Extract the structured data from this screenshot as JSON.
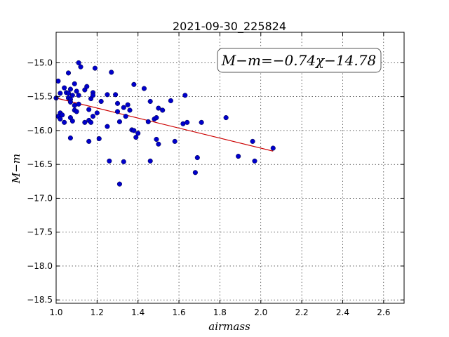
{
  "chart_data": {
    "type": "scatter",
    "title": "2021-09-30_225824",
    "xlabel": "airmass",
    "ylabel": "M−m",
    "xlim": [
      1.0,
      2.7
    ],
    "ylim": [
      -18.55,
      -14.55
    ],
    "y_inverted": true,
    "xticks": [
      "1.0",
      "1.2",
      "1.4",
      "1.6",
      "1.8",
      "2.0",
      "2.2",
      "2.4",
      "2.6"
    ],
    "xtick_values": [
      1.0,
      1.2,
      1.4,
      1.6,
      1.8,
      2.0,
      2.2,
      2.4,
      2.6
    ],
    "yticks": [
      "−15.0",
      "−15.5",
      "−16.0",
      "−16.5",
      "−17.0",
      "−17.5",
      "−18.0",
      "−18.5"
    ],
    "ytick_values": [
      -15.0,
      -15.5,
      -16.0,
      -16.5,
      -17.0,
      -17.5,
      -18.0,
      -18.5
    ],
    "grid": true,
    "annotation": "M−m=−0.74χ−14.78",
    "colors": {
      "points": "#0000cc",
      "fit_line": "#cc0000"
    },
    "fit": {
      "slope": -0.74,
      "intercept": -14.78,
      "x_range": [
        1.0,
        2.06
      ]
    },
    "points": [
      [
        1.01,
        -15.27
      ],
      [
        1.02,
        -15.45
      ],
      [
        1.0,
        -15.52
      ],
      [
        1.01,
        -15.79
      ],
      [
        1.02,
        -15.74
      ],
      [
        1.02,
        -15.83
      ],
      [
        1.03,
        -15.77
      ],
      [
        1.04,
        -15.37
      ],
      [
        1.05,
        -15.44
      ],
      [
        1.04,
        -15.88
      ],
      [
        1.06,
        -15.15
      ],
      [
        1.06,
        -15.45
      ],
      [
        1.07,
        -15.39
      ],
      [
        1.06,
        -15.52
      ],
      [
        1.07,
        -15.54
      ],
      [
        1.07,
        -15.58
      ],
      [
        1.08,
        -15.48
      ],
      [
        1.07,
        -15.81
      ],
      [
        1.08,
        -15.86
      ],
      [
        1.07,
        -16.11
      ],
      [
        1.09,
        -15.31
      ],
      [
        1.09,
        -15.63
      ],
      [
        1.09,
        -15.7
      ],
      [
        1.1,
        -15.72
      ],
      [
        1.1,
        -15.42
      ],
      [
        1.11,
        -15.48
      ],
      [
        1.11,
        -15.61
      ],
      [
        1.11,
        -15.0
      ],
      [
        1.12,
        -15.06
      ],
      [
        1.14,
        -15.4
      ],
      [
        1.15,
        -15.35
      ],
      [
        1.14,
        -15.88
      ],
      [
        1.16,
        -16.16
      ],
      [
        1.16,
        -15.69
      ],
      [
        1.17,
        -15.53
      ],
      [
        1.16,
        -15.85
      ],
      [
        1.18,
        -15.44
      ],
      [
        1.18,
        -15.48
      ],
      [
        1.17,
        -15.88
      ],
      [
        1.18,
        -15.79
      ],
      [
        1.19,
        -15.08
      ],
      [
        1.2,
        -15.74
      ],
      [
        1.21,
        -16.12
      ],
      [
        1.22,
        -15.57
      ],
      [
        1.25,
        -15.47
      ],
      [
        1.25,
        -15.94
      ],
      [
        1.26,
        -16.45
      ],
      [
        1.27,
        -15.14
      ],
      [
        1.29,
        -15.47
      ],
      [
        1.3,
        -15.6
      ],
      [
        1.3,
        -15.72
      ],
      [
        1.31,
        -15.87
      ],
      [
        1.31,
        -16.79
      ],
      [
        1.33,
        -15.66
      ],
      [
        1.33,
        -16.46
      ],
      [
        1.34,
        -15.79
      ],
      [
        1.35,
        -15.62
      ],
      [
        1.36,
        -15.7
      ],
      [
        1.37,
        -15.99
      ],
      [
        1.38,
        -15.32
      ],
      [
        1.38,
        -16.0
      ],
      [
        1.39,
        -16.1
      ],
      [
        1.4,
        -16.04
      ],
      [
        1.43,
        -15.38
      ],
      [
        1.45,
        -15.87
      ],
      [
        1.46,
        -15.57
      ],
      [
        1.46,
        -16.45
      ],
      [
        1.48,
        -15.83
      ],
      [
        1.49,
        -15.81
      ],
      [
        1.49,
        -16.13
      ],
      [
        1.5,
        -16.2
      ],
      [
        1.5,
        -15.67
      ],
      [
        1.52,
        -15.7
      ],
      [
        1.56,
        -15.56
      ],
      [
        1.58,
        -16.16
      ],
      [
        1.62,
        -15.9
      ],
      [
        1.63,
        -15.48
      ],
      [
        1.64,
        -15.88
      ],
      [
        1.68,
        -16.62
      ],
      [
        1.69,
        -16.4
      ],
      [
        1.71,
        -15.88
      ],
      [
        1.83,
        -15.81
      ],
      [
        1.89,
        -16.38
      ],
      [
        1.96,
        -16.16
      ],
      [
        1.97,
        -16.45
      ],
      [
        2.06,
        -16.26
      ]
    ]
  }
}
